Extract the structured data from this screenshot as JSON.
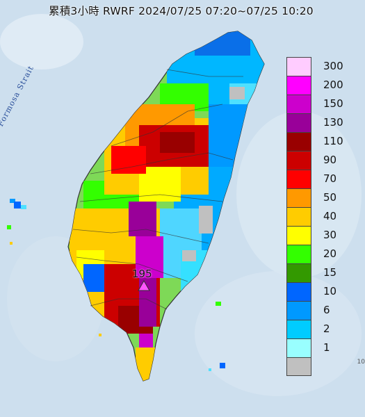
{
  "title": "累積3小時 RWRF 2024/07/25 07:20~07/25 10:20",
  "sea_label": "Formosa Strait",
  "peak": {
    "value": "195",
    "marker": "triangle-marker"
  },
  "corner_text": "10",
  "legend": [
    {
      "label": "300",
      "color": "#ffccff"
    },
    {
      "label": "200",
      "color": "#ff00ff"
    },
    {
      "label": "150",
      "color": "#cc00cc"
    },
    {
      "label": "130",
      "color": "#990099"
    },
    {
      "label": "110",
      "color": "#990000"
    },
    {
      "label": "90",
      "color": "#cc0000"
    },
    {
      "label": "70",
      "color": "#ff0000"
    },
    {
      "label": "50",
      "color": "#ff9900"
    },
    {
      "label": "40",
      "color": "#ffcc00"
    },
    {
      "label": "30",
      "color": "#ffff00"
    },
    {
      "label": "20",
      "color": "#33ff00"
    },
    {
      "label": "15",
      "color": "#339900"
    },
    {
      "label": "10",
      "color": "#0066ff"
    },
    {
      "label": "6",
      "color": "#0099ff"
    },
    {
      "label": "2",
      "color": "#00ccff"
    },
    {
      "label": "1",
      "color": "#99ffff"
    },
    {
      "label": "",
      "color": "#c0c0c0"
    }
  ]
}
